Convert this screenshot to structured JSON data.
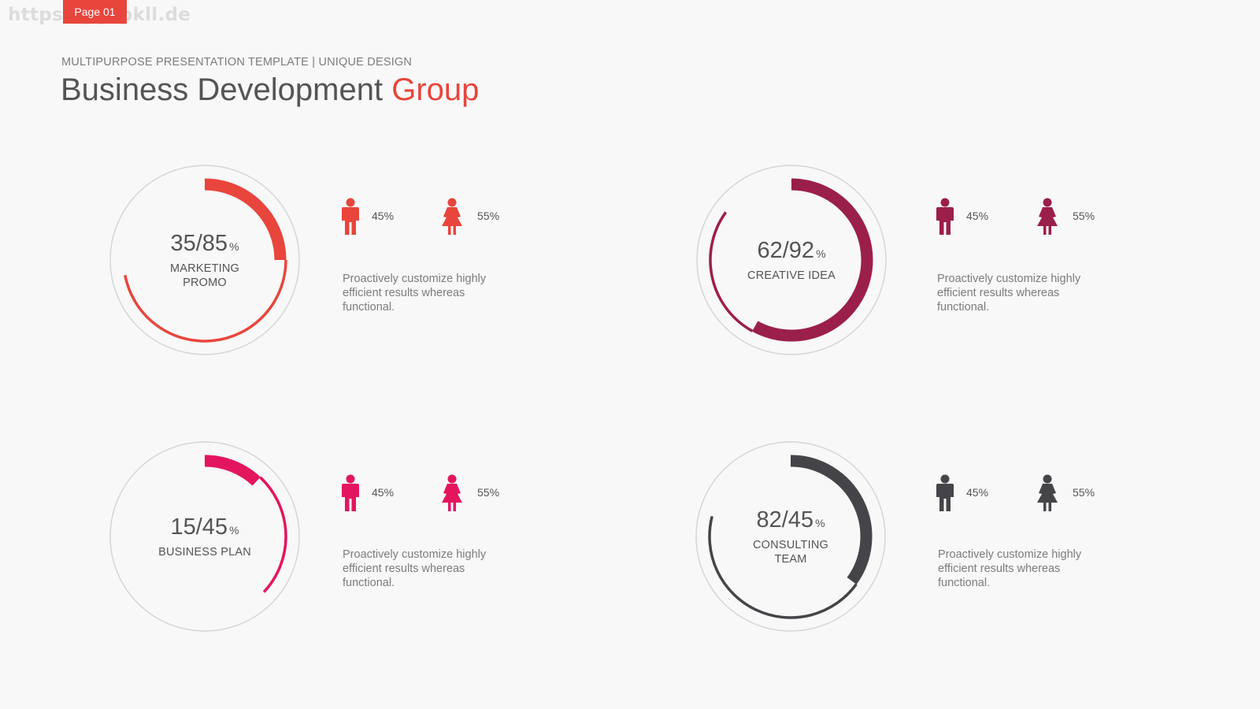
{
  "watermark": "https://pptpkll.de",
  "page_badge": "Page 01",
  "header": {
    "subtitle": "MULTIPURPOSE PRESENTATION TEMPLATE | UNIQUE DESIGN",
    "title_main": "Business Development ",
    "title_accent": "Group"
  },
  "colors": {
    "accent": "#e8453c",
    "ring_outline": "#d6d6d6",
    "text": "#545454",
    "muted_text": "#7c7c7c"
  },
  "cards": [
    {
      "ratio": "35/85",
      "pct_symbol": "%",
      "label": "MARKETING PROMO",
      "color": "#e8453c",
      "thick_fraction": 0.25,
      "thin_fraction": 0.47,
      "male_icon": "male-icon",
      "female_icon": "female-icon",
      "male_value": "45%",
      "female_value": "55%",
      "description": "Proactively customize highly efficient results whereas functional."
    },
    {
      "ratio": "62/92",
      "pct_symbol": "%",
      "label": "CREATIVE IDEA",
      "color": "#9b1f4b",
      "thick_fraction": 0.58,
      "thin_fraction": 0.27,
      "male_icon": "male-icon",
      "female_icon": "female-icon",
      "male_value": "45%",
      "female_value": "55%",
      "description": "Proactively customize highly efficient results whereas functional."
    },
    {
      "ratio": "15/45",
      "pct_symbol": "%",
      "label": "BUSINESS PLAN",
      "color": "#e4155f",
      "thick_fraction": 0.12,
      "thin_fraction": 0.25,
      "male_icon": "male-icon",
      "female_icon": "female-icon",
      "male_value": "45%",
      "female_value": "55%",
      "description": "Proactively customize highly efficient results whereas functional."
    },
    {
      "ratio": "82/45",
      "pct_symbol": "%",
      "label": "CONSULTING TEAM",
      "color": "#454448",
      "thick_fraction": 0.35,
      "thin_fraction": 0.44,
      "male_icon": "male-icon",
      "female_icon": "female-icon",
      "male_value": "45%",
      "female_value": "55%",
      "description": "Proactively customize highly efficient results whereas functional."
    }
  ]
}
